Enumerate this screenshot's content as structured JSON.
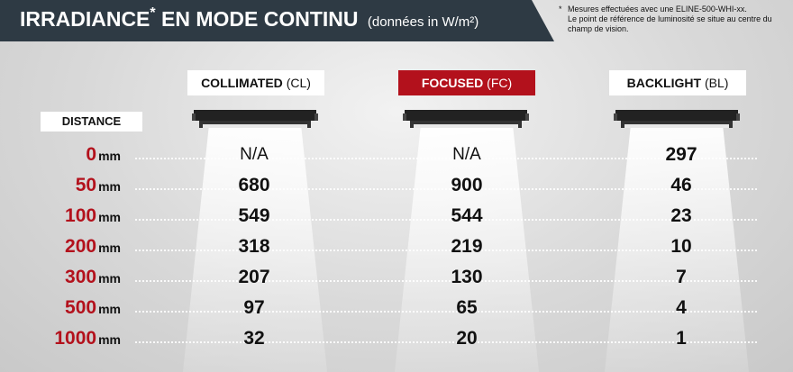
{
  "header": {
    "title": "IRRADIANCE",
    "title_star": "*",
    "title_rest": "EN MODE CONTINU",
    "unit_note": "(données in W/m²)",
    "color": "#2e3a44"
  },
  "footnote": {
    "star": "*",
    "line1": "Mesures effectuées avec une ELINE-500-WHI-xx.",
    "line2": "Le point de référence de luminosité se situe au centre du champ de vision."
  },
  "distance_label": "DISTANCE",
  "columns": [
    {
      "name": "COLLIMATED",
      "abbr": "(CL)",
      "style": "white"
    },
    {
      "name": "FOCUSED",
      "abbr": "(FC)",
      "style": "red",
      "color": "#b3111c"
    },
    {
      "name": "BACKLIGHT",
      "abbr": "(BL)",
      "style": "white"
    }
  ],
  "rows": [
    {
      "distance": "0",
      "unit": "mm",
      "values": [
        "N/A",
        "N/A",
        "297"
      ]
    },
    {
      "distance": "50",
      "unit": "mm",
      "values": [
        "680",
        "900",
        "46"
      ]
    },
    {
      "distance": "100",
      "unit": "mm",
      "values": [
        "549",
        "544",
        "23"
      ]
    },
    {
      "distance": "200",
      "unit": "mm",
      "values": [
        "318",
        "219",
        "10"
      ]
    },
    {
      "distance": "300",
      "unit": "mm",
      "values": [
        "207",
        "130",
        "7"
      ]
    },
    {
      "distance": "500",
      "unit": "mm",
      "values": [
        "97",
        "65",
        "4"
      ]
    },
    {
      "distance": "1000",
      "unit": "mm",
      "values": [
        "32",
        "20",
        "1"
      ]
    }
  ]
}
